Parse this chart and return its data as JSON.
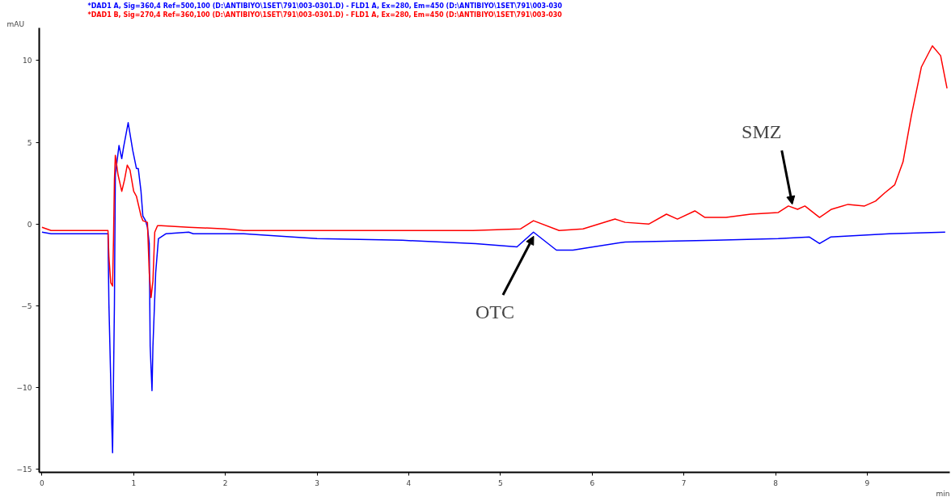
{
  "chart_data": {
    "type": "line",
    "xlabel": "min",
    "ylabel": "mAU",
    "xlim": [
      -0.03,
      9.9
    ],
    "ylim": [
      -15.2,
      12
    ],
    "xticks": [
      0,
      1,
      2,
      3,
      4,
      5,
      6,
      7,
      8,
      9
    ],
    "yticks": [
      -15,
      -10,
      -5,
      0,
      5,
      10
    ],
    "grid": false,
    "legend": "top left",
    "line_style": "solid",
    "marker": "none",
    "series": [
      {
        "name": "*DAD1 A, Sig=360,4 Ref=500,100 (D:\\ANTIBIYO\\1SET\\791\\003-0301.D) - FLD1 A, Ex=280, Em=450 (D:\\ANTIBIYO\\1SET\\791\\003-030",
        "color": "#0000ff",
        "x": [
          0,
          0.1,
          0.72,
          0.73,
          0.76,
          0.77,
          0.79,
          0.8,
          0.84,
          0.87,
          0.89,
          0.94,
          0.99,
          1.03,
          1.05,
          1.08,
          1.1,
          1.13,
          1.15,
          1.17,
          1.18,
          1.2,
          1.21,
          1.24,
          1.27,
          1.35,
          1.6,
          1.65,
          2.2,
          3.0,
          3.93,
          4.73,
          5.18,
          5.36,
          5.61,
          5.79,
          5.9,
          6.36,
          7.35,
          8.03,
          8.37,
          8.48,
          8.6,
          9.24,
          9.85
        ],
        "values": [
          -0.5,
          -0.6,
          -0.6,
          -4.9,
          -12,
          -14,
          -5,
          3,
          4.8,
          4.0,
          4.7,
          6.2,
          4.5,
          3.4,
          3.4,
          2.0,
          0.5,
          0.2,
          -0.2,
          -1.2,
          -7.5,
          -10.2,
          -7.5,
          -3,
          -0.9,
          -0.6,
          -0.5,
          -0.6,
          -0.6,
          -0.9,
          -1.0,
          -1.2,
          -1.4,
          -0.5,
          -1.6,
          -1.6,
          -1.5,
          -1.1,
          -1.0,
          -0.9,
          -0.8,
          -1.2,
          -0.8,
          -0.6,
          -0.5
        ]
      },
      {
        "name": "*DAD1 B, Sig=270,4 Ref=360,100 (D:\\ANTIBIYO\\1SET\\791\\003-0301.D) - FLD1 A, Ex=280, Em=450 (D:\\ANTIBIYO\\1SET\\791\\003-030",
        "color": "#ff0000",
        "x": [
          0,
          0.1,
          0.72,
          0.73,
          0.75,
          0.77,
          0.78,
          0.79,
          0.8,
          0.83,
          0.87,
          0.9,
          0.93,
          0.96,
          1.0,
          1.03,
          1.08,
          1.1,
          1.15,
          1.17,
          1.19,
          1.21,
          1.23,
          1.26,
          1.3,
          1.6,
          2.0,
          2.2,
          3.93,
          4.7,
          5.22,
          5.36,
          5.64,
          5.9,
          6.25,
          6.36,
          6.62,
          6.81,
          6.93,
          7.12,
          7.23,
          7.46,
          7.73,
          8.03,
          8.14,
          8.24,
          8.32,
          8.48,
          8.61,
          8.79,
          8.97,
          9.09,
          9.19,
          9.3,
          9.39,
          9.48,
          9.59,
          9.71,
          9.8,
          9.87
        ],
        "values": [
          -0.2,
          -0.4,
          -0.4,
          -2,
          -3.6,
          -3.8,
          -1,
          2.7,
          4.2,
          3.0,
          2.0,
          2.7,
          3.6,
          3.3,
          2.0,
          1.7,
          0.5,
          0.2,
          0.1,
          -3,
          -4.5,
          -3.5,
          -0.5,
          -0.1,
          -0.1,
          -0.2,
          -0.3,
          -0.4,
          -0.4,
          -0.4,
          -0.3,
          0.2,
          -0.4,
          -0.3,
          0.3,
          0.1,
          0.0,
          0.6,
          0.3,
          0.8,
          0.4,
          0.4,
          0.6,
          0.7,
          1.1,
          0.9,
          1.1,
          0.4,
          0.9,
          1.2,
          1.1,
          1.4,
          1.9,
          2.4,
          3.8,
          6.6,
          9.6,
          10.9,
          10.3,
          8.3
        ]
      }
    ],
    "annotations": [
      {
        "text": "OTC",
        "x": 5.38,
        "y": -0.5
      },
      {
        "text": "SMZ",
        "x": 8.2,
        "y": 1.0
      }
    ]
  }
}
